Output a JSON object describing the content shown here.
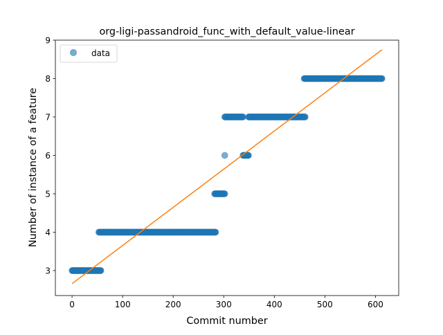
{
  "chart_data": {
    "type": "scatter",
    "title": "org-ligi-passandroid_func_with_default_value-linear",
    "xlabel": "Commit number",
    "ylabel": "Number of instance of a feature",
    "xlim": [
      -33,
      646
    ],
    "ylim": [
      2.35,
      9.0
    ],
    "xticks": [
      0,
      100,
      200,
      300,
      400,
      500,
      600
    ],
    "yticks": [
      3,
      4,
      5,
      6,
      7,
      8,
      9
    ],
    "grid": false,
    "legend": {
      "location": "top-left",
      "entries": [
        "data"
      ]
    },
    "series": [
      {
        "name": "data",
        "kind": "scatter",
        "color": "#1f77b4",
        "alpha": 0.6,
        "runs": [
          {
            "x_start": 0,
            "x_end": 57,
            "y": 3
          },
          {
            "x_start": 53,
            "x_end": 284,
            "y": 4
          },
          {
            "x_start": 282,
            "x_end": 302,
            "y": 5
          },
          {
            "x_start": 302,
            "x_end": 302,
            "y": 6
          },
          {
            "x_start": 302,
            "x_end": 338,
            "y": 7
          },
          {
            "x_start": 338,
            "x_end": 349,
            "y": 6
          },
          {
            "x_start": 349,
            "x_end": 461,
            "y": 7
          },
          {
            "x_start": 459,
            "x_end": 613,
            "y": 8
          }
        ]
      },
      {
        "name": "",
        "kind": "line",
        "color": "#ff7f0e",
        "points": [
          [
            0,
            2.66
          ],
          [
            613,
            8.75
          ]
        ]
      }
    ]
  }
}
